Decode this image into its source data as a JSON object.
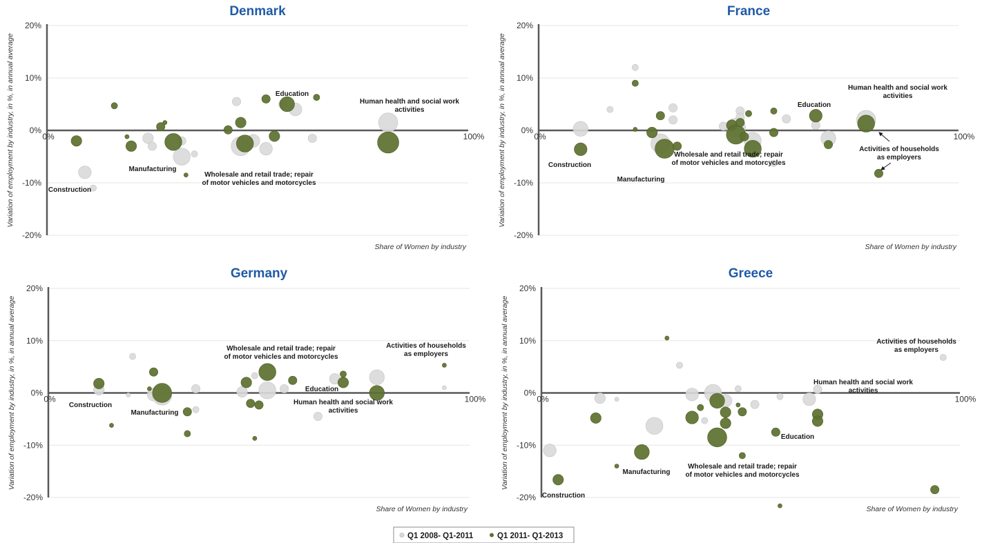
{
  "colors": {
    "series_2008_2011": "#d9d9d9",
    "series_2011_2013": "#5e7130",
    "title": "#1f5aa6",
    "axis": "#595959",
    "grid": "#e6e6e6"
  },
  "legend": {
    "items": [
      "Q1 2008- Q1-2011",
      "Q1 2011- Q1-2013"
    ],
    "position": "bottom-center"
  },
  "chart_data": [
    {
      "type": "scatter",
      "title": "Denmark",
      "ylabel": "Variation of employment by industry, in %, in annual average",
      "xlabel": "Share of Women by industry",
      "xlim": [
        0,
        100
      ],
      "ylim": [
        -20,
        20
      ],
      "x_ticks": [
        "0%",
        "100%"
      ],
      "y_ticks": [
        "20%",
        "10%",
        "0%",
        "-10%",
        "-20%"
      ],
      "grid": true,
      "series": [
        {
          "name": "Q1 2008- Q1-2011",
          "points": [
            {
              "x": 9,
              "y": -8,
              "size": 5
            },
            {
              "x": 11,
              "y": -11,
              "size": 2
            },
            {
              "x": 24,
              "y": -1.5,
              "size": 4
            },
            {
              "x": 25,
              "y": -3,
              "size": 3
            },
            {
              "x": 32,
              "y": -5,
              "size": 7
            },
            {
              "x": 32,
              "y": -2,
              "size": 3
            },
            {
              "x": 35,
              "y": -4.5,
              "size": 2
            },
            {
              "x": 45,
              "y": 5.5,
              "size": 3
            },
            {
              "x": 46,
              "y": -3,
              "size": 8
            },
            {
              "x": 49,
              "y": -2,
              "size": 5
            },
            {
              "x": 52,
              "y": -3.5,
              "size": 5
            },
            {
              "x": 56,
              "y": 5,
              "size": 3
            },
            {
              "x": 59,
              "y": 4,
              "size": 5
            },
            {
              "x": 63,
              "y": -1.5,
              "size": 3
            },
            {
              "x": 81,
              "y": 1.5,
              "size": 8
            }
          ]
        },
        {
          "name": "Q1 2011- Q1-2013",
          "points": [
            {
              "x": 7,
              "y": -2,
              "size": 4
            },
            {
              "x": 16,
              "y": 4.7,
              "size": 2
            },
            {
              "x": 19,
              "y": -1.2,
              "size": 1
            },
            {
              "x": 20,
              "y": -3,
              "size": 4
            },
            {
              "x": 27,
              "y": 0.7,
              "size": 3
            },
            {
              "x": 28,
              "y": 1.5,
              "size": 1
            },
            {
              "x": 30,
              "y": -2.2,
              "size": 7
            },
            {
              "x": 33,
              "y": -8.5,
              "size": 1
            },
            {
              "x": 43,
              "y": 0.1,
              "size": 3
            },
            {
              "x": 46,
              "y": 1.5,
              "size": 4
            },
            {
              "x": 47,
              "y": -2.5,
              "size": 7
            },
            {
              "x": 52,
              "y": 6,
              "size": 3
            },
            {
              "x": 54,
              "y": -1.1,
              "size": 4
            },
            {
              "x": 57,
              "y": 5,
              "size": 6
            },
            {
              "x": 64,
              "y": 6.3,
              "size": 2
            },
            {
              "x": 81,
              "y": -2.3,
              "size": 9
            }
          ]
        }
      ],
      "annotations": [
        "Education",
        "Human health and social work activities",
        "Manufacturing",
        "Wholesale and retail trade; repair of motor vehicles and motorcycles",
        "Construction"
      ]
    },
    {
      "type": "scatter",
      "title": "France",
      "ylabel": "Variation of employment by industry, in %, in annual average",
      "xlabel": "Share of Women by industry",
      "xlim": [
        0,
        100
      ],
      "ylim": [
        -20,
        20
      ],
      "x_ticks": [
        "0%",
        "100%"
      ],
      "y_ticks": [
        "20%",
        "10%",
        "0%",
        "-10%",
        "-20%"
      ],
      "grid": true,
      "series": [
        {
          "name": "Q1 2008- Q1-2011",
          "points": [
            {
              "x": 10,
              "y": 0.3,
              "size": 6
            },
            {
              "x": 17,
              "y": 4,
              "size": 2
            },
            {
              "x": 23,
              "y": 12,
              "size": 2
            },
            {
              "x": 29,
              "y": -2.5,
              "size": 8
            },
            {
              "x": 32,
              "y": 4.3,
              "size": 3
            },
            {
              "x": 32,
              "y": 2,
              "size": 3
            },
            {
              "x": 44,
              "y": 0.8,
              "size": 3
            },
            {
              "x": 47,
              "y": 0.5,
              "size": 8
            },
            {
              "x": 48,
              "y": 3.7,
              "size": 3
            },
            {
              "x": 48,
              "y": 2.5,
              "size": 3
            },
            {
              "x": 51,
              "y": -2,
              "size": 7
            },
            {
              "x": 56,
              "y": -6.3,
              "size": 2
            },
            {
              "x": 59,
              "y": 2.2,
              "size": 3
            },
            {
              "x": 66,
              "y": 1,
              "size": 3
            },
            {
              "x": 69,
              "y": -1.5,
              "size": 6
            },
            {
              "x": 78,
              "y": 2,
              "size": 8
            }
          ]
        },
        {
          "name": "Q1 2011- Q1-2013",
          "points": [
            {
              "x": 10,
              "y": -3.6,
              "size": 5
            },
            {
              "x": 23,
              "y": 9,
              "size": 2
            },
            {
              "x": 23,
              "y": 0.2,
              "size": 1
            },
            {
              "x": 27,
              "y": -0.4,
              "size": 4
            },
            {
              "x": 29,
              "y": 2.8,
              "size": 3
            },
            {
              "x": 30,
              "y": -3.5,
              "size": 8
            },
            {
              "x": 33,
              "y": -3,
              "size": 3
            },
            {
              "x": 46,
              "y": 1,
              "size": 4
            },
            {
              "x": 47,
              "y": -0.8,
              "size": 8
            },
            {
              "x": 48,
              "y": 1.5,
              "size": 3
            },
            {
              "x": 49,
              "y": -1.2,
              "size": 3
            },
            {
              "x": 50,
              "y": 3.2,
              "size": 2
            },
            {
              "x": 51,
              "y": -3.5,
              "size": 7
            },
            {
              "x": 56,
              "y": -0.4,
              "size": 3
            },
            {
              "x": 56,
              "y": 3.7,
              "size": 2
            },
            {
              "x": 66,
              "y": 2.8,
              "size": 5
            },
            {
              "x": 69,
              "y": -2.7,
              "size": 3
            },
            {
              "x": 78,
              "y": 1.3,
              "size": 7
            },
            {
              "x": 81,
              "y": -8.2,
              "size": 3
            }
          ]
        }
      ],
      "annotations": [
        "Human health and social work activities",
        "Education",
        "Construction",
        "Wholesale and retail trade; repair of motor vehicles and motorcycles",
        "Activities of households as employers",
        "Manufacturing"
      ]
    },
    {
      "type": "scatter",
      "title": "Germany",
      "ylabel": "Variation of employment by industry, in %, in annual average",
      "xlabel": "Share of Women by industry",
      "xlim": [
        0,
        100
      ],
      "ylim": [
        -20,
        20
      ],
      "x_ticks": [
        "0%",
        "100%"
      ],
      "y_ticks": [
        "20%",
        "10%",
        "0%",
        "-10%",
        "-20%"
      ],
      "grid": true,
      "series": [
        {
          "name": "Q1 2008- Q1-2011",
          "points": [
            {
              "x": 12,
              "y": 0.6,
              "size": 4
            },
            {
              "x": 19,
              "y": -0.4,
              "size": 1
            },
            {
              "x": 20,
              "y": 7,
              "size": 2
            },
            {
              "x": 25,
              "y": -0.3,
              "size": 5
            },
            {
              "x": 27,
              "y": -0.5,
              "size": 8
            },
            {
              "x": 35,
              "y": 0.8,
              "size": 3
            },
            {
              "x": 35,
              "y": -3.2,
              "size": 2
            },
            {
              "x": 46,
              "y": 0.2,
              "size": 4
            },
            {
              "x": 49,
              "y": 3.3,
              "size": 2
            },
            {
              "x": 52,
              "y": 0.5,
              "size": 7
            },
            {
              "x": 56,
              "y": 0.8,
              "size": 3
            },
            {
              "x": 64,
              "y": -4.5,
              "size": 3
            },
            {
              "x": 68,
              "y": 2.7,
              "size": 4
            },
            {
              "x": 78,
              "y": 3,
              "size": 6
            },
            {
              "x": 94,
              "y": 1,
              "size": 1
            }
          ]
        },
        {
          "name": "Q1 2011- Q1-2013",
          "points": [
            {
              "x": 12,
              "y": 1.8,
              "size": 4
            },
            {
              "x": 15,
              "y": -6.2,
              "size": 1
            },
            {
              "x": 24,
              "y": 0.8,
              "size": 1
            },
            {
              "x": 25,
              "y": 4,
              "size": 3
            },
            {
              "x": 27,
              "y": 0,
              "size": 8
            },
            {
              "x": 33,
              "y": -3.6,
              "size": 3
            },
            {
              "x": 33,
              "y": -7.8,
              "size": 2
            },
            {
              "x": 47,
              "y": 2,
              "size": 4
            },
            {
              "x": 48,
              "y": -2,
              "size": 3
            },
            {
              "x": 49,
              "y": -8.7,
              "size": 1
            },
            {
              "x": 50,
              "y": -2.3,
              "size": 3
            },
            {
              "x": 52,
              "y": 4,
              "size": 7
            },
            {
              "x": 58,
              "y": 2.4,
              "size": 3
            },
            {
              "x": 70,
              "y": 3.6,
              "size": 2
            },
            {
              "x": 70,
              "y": 2,
              "size": 4
            },
            {
              "x": 78,
              "y": 0,
              "size": 6
            },
            {
              "x": 94,
              "y": 5.3,
              "size": 1
            }
          ]
        }
      ],
      "annotations": [
        "Wholesale and retail trade; repair of motor vehicles and motorcycles",
        "Activities of households as employers",
        "Construction",
        "Manufacturing",
        "Education",
        "Human health and social work activities"
      ]
    },
    {
      "type": "scatter",
      "title": "Greece",
      "ylabel": "Variation of employment by industry, in %, in annual average",
      "xlabel": "Share of Women by industry",
      "xlim": [
        0,
        100
      ],
      "ylim": [
        -20,
        20
      ],
      "x_ticks": [
        "0%",
        "100%"
      ],
      "y_ticks": [
        "20%",
        "10%",
        "0%",
        "-10%",
        "-20%"
      ],
      "grid": true,
      "series": [
        {
          "name": "Q1 2008- Q1-2011",
          "points": [
            {
              "x": 2,
              "y": -11,
              "size": 5
            },
            {
              "x": 14,
              "y": -1,
              "size": 4
            },
            {
              "x": 18,
              "y": -1.2,
              "size": 1
            },
            {
              "x": 27,
              "y": -6.3,
              "size": 7
            },
            {
              "x": 33,
              "y": 5.3,
              "size": 2
            },
            {
              "x": 36,
              "y": -0.3,
              "size": 5
            },
            {
              "x": 39,
              "y": -5.3,
              "size": 2
            },
            {
              "x": 41,
              "y": 0,
              "size": 7
            },
            {
              "x": 44,
              "y": -1.5,
              "size": 5
            },
            {
              "x": 47,
              "y": 0.8,
              "size": 2
            },
            {
              "x": 51,
              "y": -2.2,
              "size": 3
            },
            {
              "x": 57,
              "y": -0.7,
              "size": 2
            },
            {
              "x": 64,
              "y": -1.2,
              "size": 5
            },
            {
              "x": 66,
              "y": 0.7,
              "size": 3
            },
            {
              "x": 96,
              "y": 6.8,
              "size": 2
            }
          ]
        },
        {
          "name": "Q1 2011- Q1-2013",
          "points": [
            {
              "x": 4,
              "y": -16.6,
              "size": 4
            },
            {
              "x": 13,
              "y": -4.8,
              "size": 4
            },
            {
              "x": 18,
              "y": -14,
              "size": 1
            },
            {
              "x": 24,
              "y": -11.3,
              "size": 6
            },
            {
              "x": 30,
              "y": 10.5,
              "size": 1
            },
            {
              "x": 38,
              "y": -2.8,
              "size": 2
            },
            {
              "x": 36,
              "y": -4.7,
              "size": 5
            },
            {
              "x": 42,
              "y": -8.5,
              "size": 8
            },
            {
              "x": 42,
              "y": -1.5,
              "size": 6
            },
            {
              "x": 44,
              "y": -3.7,
              "size": 4
            },
            {
              "x": 44,
              "y": -5.8,
              "size": 4
            },
            {
              "x": 47,
              "y": -2.3,
              "size": 1
            },
            {
              "x": 48,
              "y": -3.6,
              "size": 3
            },
            {
              "x": 48,
              "y": -12,
              "size": 2
            },
            {
              "x": 56,
              "y": -7.5,
              "size": 3
            },
            {
              "x": 57,
              "y": -21.6,
              "size": 1
            },
            {
              "x": 66,
              "y": -4.1,
              "size": 4
            },
            {
              "x": 66,
              "y": -5.4,
              "size": 4
            },
            {
              "x": 94,
              "y": -18.5,
              "size": 3
            }
          ]
        }
      ],
      "annotations": [
        "Activities of households as employers",
        "Human health and social work activities",
        "Education",
        "Manufacturing",
        "Wholesale and retail trade; repair of motor vehicles and motorcycles",
        "Construction"
      ]
    }
  ]
}
